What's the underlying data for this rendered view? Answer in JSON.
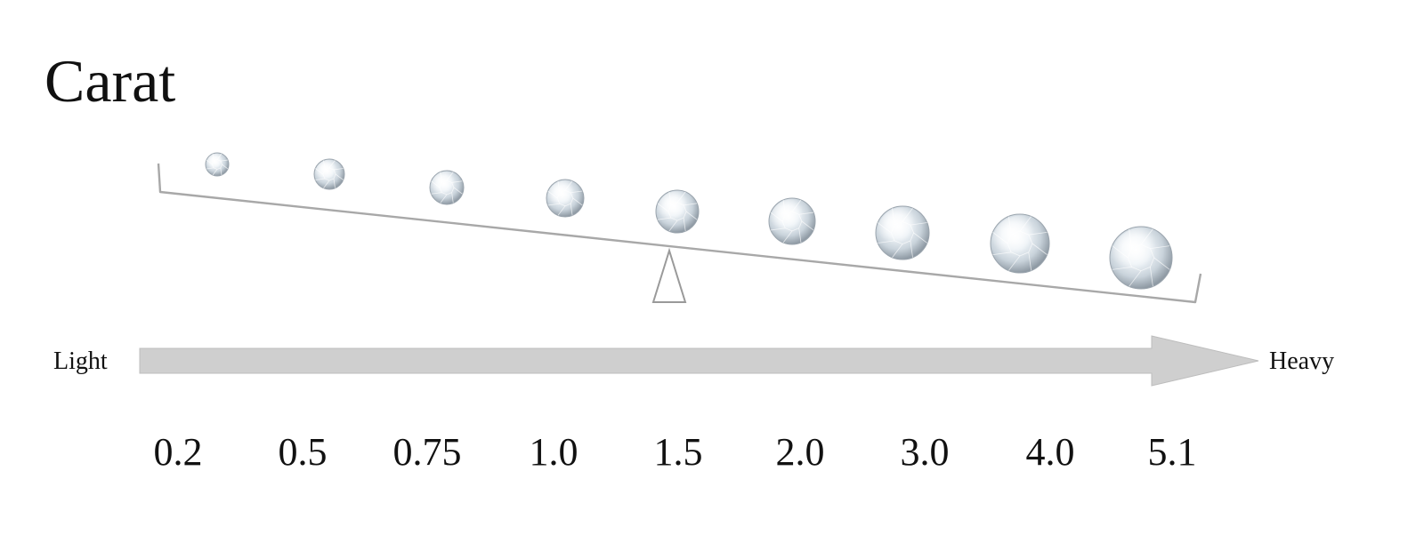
{
  "title": "Carat",
  "scale": {
    "light_label": "Light",
    "heavy_label": "Heavy"
  },
  "colors": {
    "beam": "#a8a8a8",
    "fulcrum": "#9a9a9a",
    "arrow_fill": "#cfcfcf",
    "arrow_stroke": "#bdbdbd",
    "text": "#111111"
  },
  "diamond_icon": "round-brilliant-diamond-icon",
  "carats": [
    {
      "label": "0.2",
      "value": 0.2
    },
    {
      "label": "0.5",
      "value": 0.5
    },
    {
      "label": "0.75",
      "value": 0.75
    },
    {
      "label": "1.0",
      "value": 1.0
    },
    {
      "label": "1.5",
      "value": 1.5
    },
    {
      "label": "2.0",
      "value": 2.0
    },
    {
      "label": "3.0",
      "value": 3.0
    },
    {
      "label": "4.0",
      "value": 4.0
    },
    {
      "label": "5.1",
      "value": 5.1
    }
  ]
}
